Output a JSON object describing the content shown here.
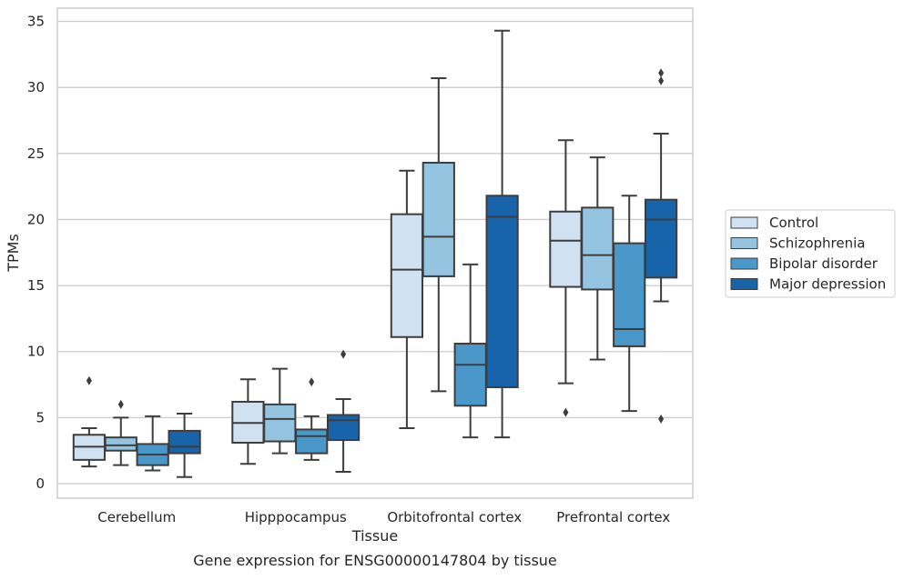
{
  "chart_data": {
    "type": "box",
    "title": "",
    "caption": "Gene expression for ENSG00000147804 by tissue",
    "xlabel": "Tissue",
    "ylabel": "TPMs",
    "ylim": [
      -1.1,
      36
    ],
    "yticks": [
      0,
      5,
      10,
      15,
      20,
      25,
      30,
      35
    ],
    "grid": "horizontal",
    "legend_position": "right",
    "categories": [
      "Cerebellum",
      "Hipppocampus",
      "Orbitofrontal cortex",
      "Prefrontal cortex"
    ],
    "series": [
      {
        "name": "Control",
        "color": "#d0e1f2",
        "boxes": [
          {
            "whislo": 1.3,
            "q1": 1.8,
            "med": 2.8,
            "q3": 3.7,
            "whishi": 4.2,
            "fliers": [
              7.8
            ]
          },
          {
            "whislo": 1.5,
            "q1": 3.1,
            "med": 4.6,
            "q3": 6.2,
            "whishi": 7.9,
            "fliers": []
          },
          {
            "whislo": 4.2,
            "q1": 11.1,
            "med": 16.2,
            "q3": 20.4,
            "whishi": 23.7,
            "fliers": []
          },
          {
            "whislo": 7.6,
            "q1": 14.9,
            "med": 18.4,
            "q3": 20.6,
            "whishi": 26.0,
            "fliers": [
              5.4
            ]
          }
        ]
      },
      {
        "name": "Schizophrenia",
        "color": "#94c4df",
        "boxes": [
          {
            "whislo": 1.4,
            "q1": 2.5,
            "med": 2.9,
            "q3": 3.5,
            "whishi": 5.0,
            "fliers": [
              6.0
            ]
          },
          {
            "whislo": 2.3,
            "q1": 3.2,
            "med": 4.9,
            "q3": 6.0,
            "whishi": 8.7,
            "fliers": []
          },
          {
            "whislo": 7.0,
            "q1": 15.7,
            "med": 18.7,
            "q3": 24.3,
            "whishi": 30.7,
            "fliers": []
          },
          {
            "whislo": 9.4,
            "q1": 14.7,
            "med": 17.3,
            "q3": 20.9,
            "whishi": 24.7,
            "fliers": []
          }
        ]
      },
      {
        "name": "Bipolar disorder",
        "color": "#4a98c9",
        "boxes": [
          {
            "whislo": 1.0,
            "q1": 1.4,
            "med": 2.2,
            "q3": 3.0,
            "whishi": 5.1,
            "fliers": []
          },
          {
            "whislo": 1.8,
            "q1": 2.3,
            "med": 3.6,
            "q3": 4.1,
            "whishi": 5.1,
            "fliers": [
              7.7
            ]
          },
          {
            "whislo": 3.5,
            "q1": 5.9,
            "med": 9.0,
            "q3": 10.6,
            "whishi": 16.6,
            "fliers": []
          },
          {
            "whislo": 5.5,
            "q1": 10.4,
            "med": 11.7,
            "q3": 18.2,
            "whishi": 21.8,
            "fliers": []
          }
        ]
      },
      {
        "name": "Major depression",
        "color": "#1764ab",
        "boxes": [
          {
            "whislo": 0.5,
            "q1": 2.3,
            "med": 2.8,
            "q3": 4.0,
            "whishi": 5.3,
            "fliers": []
          },
          {
            "whislo": 0.9,
            "q1": 3.3,
            "med": 4.8,
            "q3": 5.2,
            "whishi": 6.4,
            "fliers": [
              9.8
            ]
          },
          {
            "whislo": 3.5,
            "q1": 7.3,
            "med": 20.2,
            "q3": 21.8,
            "whishi": 34.3,
            "fliers": []
          },
          {
            "whislo": 13.8,
            "q1": 15.6,
            "med": 20.0,
            "q3": 21.5,
            "whishi": 26.5,
            "fliers": [
              4.9,
              30.5,
              31.1
            ]
          }
        ]
      }
    ]
  }
}
